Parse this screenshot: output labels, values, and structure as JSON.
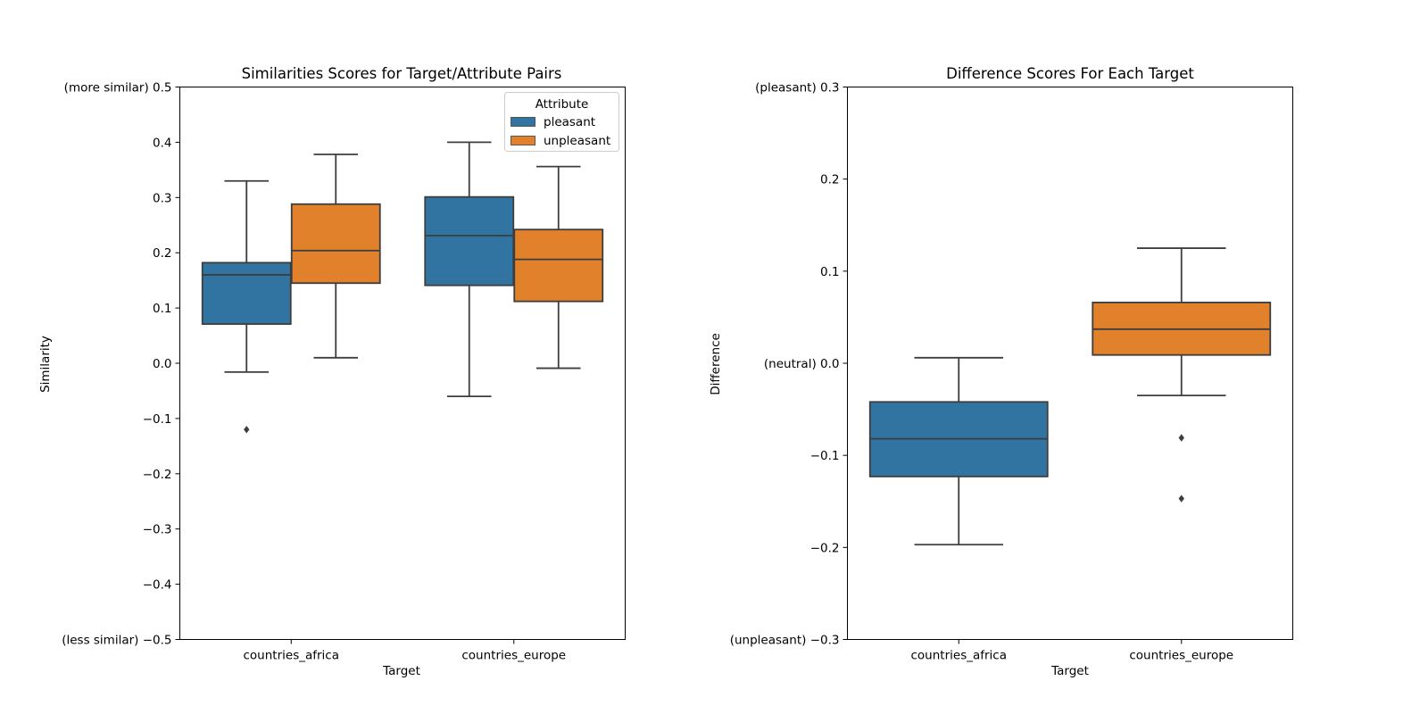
{
  "colors": {
    "pleasant": "#3274a1",
    "unpleasant": "#e1812c",
    "line": "#3d3d3d"
  },
  "chart_data": [
    {
      "type": "box",
      "title": "Similarities Scores for Target/Attribute Pairs",
      "xlabel": "Target",
      "ylabel": "Similarity",
      "ylim": [
        -0.5,
        0.5
      ],
      "yticks": [
        {
          "value": 0.5,
          "label": "(more similar) 0.5"
        },
        {
          "value": 0.4,
          "label": "0.4"
        },
        {
          "value": 0.3,
          "label": "0.3"
        },
        {
          "value": 0.2,
          "label": "0.2"
        },
        {
          "value": 0.1,
          "label": "0.1"
        },
        {
          "value": 0.0,
          "label": "0.0"
        },
        {
          "value": -0.1,
          "label": "−0.1"
        },
        {
          "value": -0.2,
          "label": "−0.2"
        },
        {
          "value": -0.3,
          "label": "−0.3"
        },
        {
          "value": -0.4,
          "label": "−0.4"
        },
        {
          "value": -0.5,
          "label": "(less similar) −0.5"
        }
      ],
      "categories": [
        "countries_africa",
        "countries_europe"
      ],
      "legend": {
        "title": "Attribute",
        "position": "top-right",
        "entries": [
          "pleasant",
          "unpleasant"
        ]
      },
      "series": [
        {
          "name": "pleasant",
          "color_key": "pleasant",
          "boxes": [
            {
              "category": "countries_africa",
              "whisker_low": -0.016,
              "q1": 0.071,
              "median": 0.16,
              "q3": 0.182,
              "whisker_high": 0.33,
              "outliers": [
                -0.12
              ]
            },
            {
              "category": "countries_europe",
              "whisker_low": -0.06,
              "q1": 0.141,
              "median": 0.231,
              "q3": 0.301,
              "whisker_high": 0.4,
              "outliers": []
            }
          ]
        },
        {
          "name": "unpleasant",
          "color_key": "unpleasant",
          "boxes": [
            {
              "category": "countries_africa",
              "whisker_low": 0.01,
              "q1": 0.145,
              "median": 0.204,
              "q3": 0.288,
              "whisker_high": 0.378,
              "outliers": []
            },
            {
              "category": "countries_europe",
              "whisker_low": -0.009,
              "q1": 0.112,
              "median": 0.188,
              "q3": 0.242,
              "whisker_high": 0.356,
              "outliers": []
            }
          ]
        }
      ]
    },
    {
      "type": "box",
      "title": "Difference Scores For Each Target",
      "xlabel": "Target",
      "ylabel": "Difference",
      "ylim": [
        -0.3,
        0.3
      ],
      "yticks": [
        {
          "value": 0.3,
          "label": "(pleasant) 0.3"
        },
        {
          "value": 0.2,
          "label": "0.2"
        },
        {
          "value": 0.1,
          "label": "0.1"
        },
        {
          "value": 0.0,
          "label": "(neutral) 0.0"
        },
        {
          "value": -0.1,
          "label": "−0.1"
        },
        {
          "value": -0.2,
          "label": "−0.2"
        },
        {
          "value": -0.3,
          "label": "(unpleasant) −0.3"
        }
      ],
      "categories": [
        "countries_africa",
        "countries_europe"
      ],
      "boxes": [
        {
          "category": "countries_africa",
          "color_key": "pleasant",
          "whisker_low": -0.197,
          "q1": -0.123,
          "median": -0.082,
          "q3": -0.042,
          "whisker_high": 0.006,
          "outliers": []
        },
        {
          "category": "countries_europe",
          "color_key": "unpleasant",
          "whisker_low": -0.035,
          "q1": 0.009,
          "median": 0.037,
          "q3": 0.066,
          "whisker_high": 0.125,
          "outliers": [
            -0.081,
            -0.147
          ]
        }
      ]
    }
  ]
}
